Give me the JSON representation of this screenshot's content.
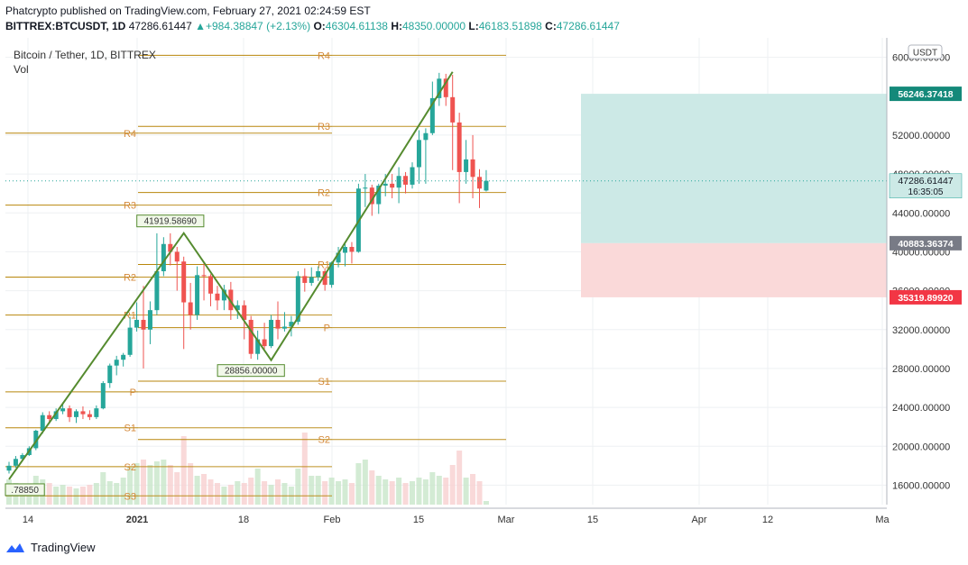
{
  "header": {
    "publisher_line": "Phatcrypto published on TradingView.com, February 27, 2021 02:24:59 EST",
    "symbol": "BITTREX:BTCUSDT, 1D",
    "last": "47286.61447",
    "change_arrow": "▲",
    "change": "+984.38847 (+2.13%)",
    "O": "46304.61138",
    "H": "48350.00000",
    "L": "46183.51898",
    "C": "47286.61447"
  },
  "legend": {
    "title": "Bitcoin / Tether, 1D, BITTREX",
    "vol_label": "Vol"
  },
  "currency_button": "USDT",
  "footer": {
    "brand": "TradingView",
    "logo_icon": "tradingview-logo-icon"
  },
  "colors": {
    "up": "#26a69a",
    "down": "#ef5350",
    "pivot": "#b8860b",
    "trend": "#558b2f",
    "target_zone": "#cce9e6",
    "stop_zone": "#fad9d9",
    "target_label": "#14897a",
    "entry_label": "#787b86",
    "stop_label": "#f23645"
  },
  "chart_data": {
    "type": "candlestick",
    "y_axis": {
      "range": [
        14000,
        62000
      ],
      "ticks": [
        "16000.00000",
        "20000.00000",
        "24000.00000",
        "28000.00000",
        "32000.00000",
        "36000.00000",
        "40000.00000",
        "44000.00000",
        "48000.00000",
        "52000.00000",
        "60000.00000"
      ]
    },
    "x_axis": {
      "labels": [
        "14",
        "2021",
        "18",
        "Feb",
        "15",
        "Mar",
        "15",
        "Apr",
        "12",
        "Ma"
      ]
    },
    "price_labels": {
      "target": "56246.37418",
      "current": "47286.61447",
      "countdown": "16:35:05",
      "entry": "40883.36374",
      "stop": "35319.89920"
    },
    "position_tool": {
      "target": 56246.37,
      "entry": 40883.36,
      "stop": 35319.9
    },
    "annotations": [
      {
        "text": "41919.58690",
        "x": 24,
        "price": 41919.59
      },
      {
        "text": "28856.00000",
        "x": 36,
        "price": 28856
      },
      {
        "text": ".78850",
        "x": 0,
        "price": 16600
      }
    ],
    "pivot_sets": [
      {
        "levels": [
          {
            "name": "R4",
            "price": 52200
          },
          {
            "name": "R3",
            "price": 44800
          },
          {
            "name": "R2",
            "price": 37400
          },
          {
            "name": "R1",
            "price": 33500
          },
          {
            "name": "P",
            "price": 25600
          },
          {
            "name": "S1",
            "price": 21900
          },
          {
            "name": "S2",
            "price": 17900
          },
          {
            "name": "S3",
            "price": 14900
          }
        ]
      },
      {
        "levels": [
          {
            "name": "R4",
            "price": 60200
          },
          {
            "name": "R3",
            "price": 52900
          },
          {
            "name": "R2",
            "price": 46100
          },
          {
            "name": "R1",
            "price": 38700
          },
          {
            "name": "P",
            "price": 32200
          },
          {
            "name": "S1",
            "price": 26700
          },
          {
            "name": "S2",
            "price": 20700
          }
        ]
      }
    ],
    "candles": [
      [
        17500,
        18400,
        17200,
        18000
      ],
      [
        18000,
        19000,
        17800,
        18700
      ],
      [
        18700,
        19300,
        18500,
        19100
      ],
      [
        19100,
        20000,
        19000,
        19800
      ],
      [
        19800,
        21700,
        19600,
        21600
      ],
      [
        21600,
        23500,
        21300,
        23200
      ],
      [
        23200,
        23600,
        22300,
        22800
      ],
      [
        22800,
        23900,
        22600,
        23600
      ],
      [
        23600,
        24500,
        23300,
        23900
      ],
      [
        23900,
        24200,
        22500,
        23000
      ],
      [
        23000,
        23800,
        22400,
        23600
      ],
      [
        23600,
        24100,
        22800,
        23300
      ],
      [
        23300,
        23700,
        22700,
        23000
      ],
      [
        23000,
        24200,
        22800,
        23900
      ],
      [
        23900,
        26700,
        23800,
        26500
      ],
      [
        26500,
        28500,
        26000,
        28300
      ],
      [
        28300,
        29300,
        27300,
        28900
      ],
      [
        28900,
        29600,
        28200,
        29400
      ],
      [
        29400,
        33300,
        29200,
        32200
      ],
      [
        32200,
        34800,
        31800,
        33000
      ],
      [
        33000,
        36500,
        28000,
        32000
      ],
      [
        32000,
        34900,
        30500,
        34000
      ],
      [
        34000,
        41900,
        33500,
        38000
      ],
      [
        38000,
        41500,
        37500,
        40800
      ],
      [
        40800,
        41900,
        38600,
        40000
      ],
      [
        40000,
        40500,
        36000,
        39000
      ],
      [
        39000,
        39500,
        30000,
        34800
      ],
      [
        34800,
        36800,
        32000,
        33500
      ],
      [
        33500,
        38500,
        33000,
        37600
      ],
      [
        37600,
        38800,
        35000,
        37500
      ],
      [
        37500,
        37700,
        34400,
        35700
      ],
      [
        35700,
        36500,
        34000,
        35000
      ],
      [
        35000,
        36600,
        34000,
        36100
      ],
      [
        36100,
        36900,
        33000,
        34000
      ],
      [
        34000,
        35000,
        33100,
        34500
      ],
      [
        34500,
        35000,
        31000,
        33000
      ],
      [
        33000,
        33400,
        29000,
        29500
      ],
      [
        29500,
        31900,
        28900,
        31000
      ],
      [
        31000,
        32700,
        30000,
        30300
      ],
      [
        30300,
        33500,
        30100,
        33000
      ],
      [
        33000,
        34900,
        31000,
        32100
      ],
      [
        32100,
        33800,
        31800,
        32300
      ],
      [
        32300,
        33400,
        31300,
        32800
      ],
      [
        32800,
        38000,
        32500,
        37500
      ],
      [
        37500,
        38300,
        35900,
        36800
      ],
      [
        36800,
        38400,
        36500,
        37400
      ],
      [
        37400,
        38500,
        37000,
        38000
      ],
      [
        38000,
        38300,
        36000,
        36600
      ],
      [
        36600,
        39000,
        36300,
        38900
      ],
      [
        38900,
        40500,
        38400,
        39900
      ],
      [
        39900,
        41000,
        38500,
        40500
      ],
      [
        40500,
        41000,
        38800,
        40000
      ],
      [
        40000,
        47000,
        39900,
        46500
      ],
      [
        46500,
        48000,
        44600,
        46600
      ],
      [
        46600,
        46900,
        43700,
        44900
      ],
      [
        44900,
        47000,
        43900,
        46800
      ],
      [
        46800,
        48000,
        45700,
        47000
      ],
      [
        47000,
        48000,
        45500,
        46600
      ],
      [
        46600,
        48700,
        45000,
        47800
      ],
      [
        47800,
        48200,
        46000,
        46900
      ],
      [
        46900,
        49200,
        46500,
        48700
      ],
      [
        48700,
        52500,
        47000,
        51500
      ],
      [
        51500,
        52700,
        47000,
        52200
      ],
      [
        52200,
        57500,
        52000,
        55800
      ],
      [
        55800,
        58400,
        55000,
        57800
      ],
      [
        57800,
        58300,
        55000,
        55900
      ],
      [
        55900,
        58200,
        48400,
        53300
      ],
      [
        53300,
        54300,
        45000,
        48200
      ],
      [
        48200,
        51500,
        47000,
        49500
      ],
      [
        49500,
        52000,
        45500,
        47700
      ],
      [
        47700,
        48500,
        44500,
        46500
      ],
      [
        46300,
        48400,
        46200,
        47300
      ]
    ],
    "volumes": [
      1.4,
      1.2,
      1.0,
      1.1,
      1.6,
      1.4,
      1.2,
      1.0,
      1.1,
      1.0,
      0.9,
      1.0,
      1.1,
      1.2,
      1.8,
      1.3,
      1.2,
      1.5,
      2.1,
      2.3,
      2.5,
      2.2,
      2.4,
      2.5,
      2.2,
      1.8,
      3.8,
      2.3,
      1.6,
      1.7,
      1.4,
      1.2,
      1.0,
      1.1,
      1.3,
      1.2,
      1.5,
      2.0,
      1.3,
      1.1,
      1.4,
      1.2,
      1.0,
      2.0,
      4.0,
      1.6,
      1.6,
      1.3,
      1.5,
      1.3,
      1.4,
      1.2,
      2.3,
      2.5,
      1.9,
      1.6,
      1.4,
      1.3,
      1.5,
      1.2,
      1.3,
      1.5,
      1.4,
      1.8,
      1.6,
      1.5,
      2.2,
      3.0,
      1.5,
      1.7,
      1.3,
      0.2
    ]
  }
}
